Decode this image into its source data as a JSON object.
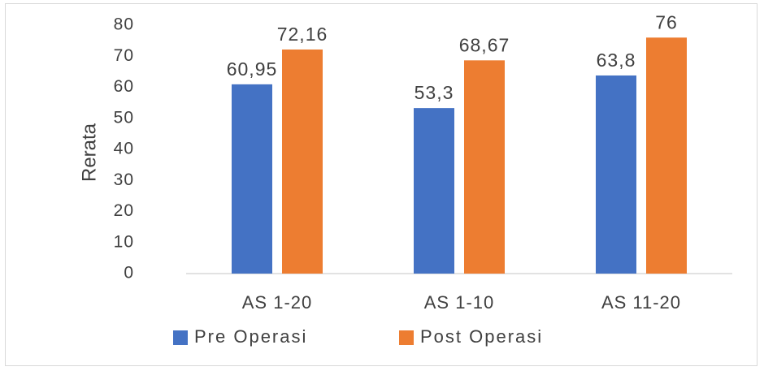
{
  "chart_data": {
    "type": "bar",
    "categories": [
      "AS 1-20",
      "AS 1-10",
      "AS 11-20"
    ],
    "series": [
      {
        "name": "Pre Operasi",
        "values": [
          60.95,
          53.3,
          63.8
        ],
        "labels": [
          "60,95",
          "53,3",
          "63,8"
        ],
        "color": "#4472C4"
      },
      {
        "name": "Post Operasi",
        "values": [
          72.16,
          68.67,
          76
        ],
        "labels": [
          "72,16",
          "68,67",
          "76"
        ],
        "color": "#ED7D31"
      }
    ],
    "ylabel": "Rerata",
    "ylim": [
      0,
      80
    ],
    "yticks": [
      0,
      10,
      20,
      30,
      40,
      50,
      60,
      70,
      80
    ],
    "grid": false,
    "legend": "bottom"
  }
}
